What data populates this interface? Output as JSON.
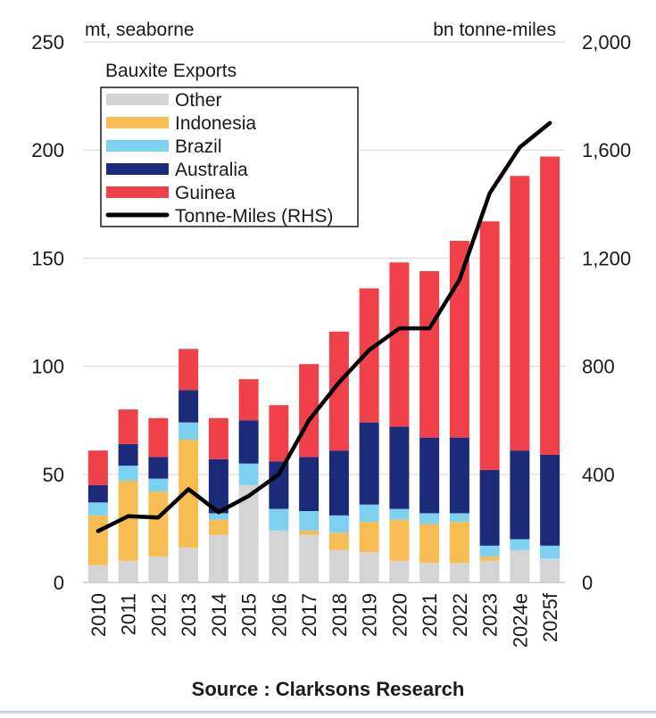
{
  "chart_data": {
    "type": "bar",
    "stacked": true,
    "left_unit_label": "mt, seaborne",
    "right_unit_label": "bn tonne-miles",
    "legend_title": "Bauxite Exports",
    "categories": [
      "2010",
      "2011",
      "2012",
      "2013",
      "2014",
      "2015",
      "2016",
      "2017",
      "2018",
      "2019",
      "2020",
      "2021",
      "2022",
      "2023",
      "2024e",
      "2025f"
    ],
    "y_left": {
      "min": 0,
      "max": 250,
      "ticks": [
        "0",
        "50",
        "100",
        "150",
        "200",
        "250"
      ]
    },
    "y_right": {
      "min": 0,
      "max": 2000,
      "ticks": [
        "0",
        "400",
        "800",
        "1,200",
        "1,600",
        "2,000"
      ]
    },
    "series": [
      {
        "name": "Other",
        "color": "#d4d4d4",
        "values": [
          8,
          10,
          12,
          16,
          22,
          45,
          24,
          22,
          15,
          14,
          10,
          9,
          9,
          10,
          15,
          11
        ]
      },
      {
        "name": "Indonesia",
        "color": "#f7bd52",
        "values": [
          23,
          37,
          30,
          50,
          7,
          0,
          0,
          2,
          8,
          14,
          19,
          18,
          19,
          2,
          0,
          0
        ]
      },
      {
        "name": "Brazil",
        "color": "#7ed0f0",
        "values": [
          6,
          7,
          6,
          8,
          3,
          10,
          10,
          9,
          8,
          8,
          5,
          5,
          4,
          5,
          5,
          6
        ]
      },
      {
        "name": "Australia",
        "color": "#1c2a7a",
        "values": [
          8,
          10,
          10,
          15,
          25,
          20,
          22,
          25,
          30,
          38,
          38,
          35,
          35,
          35,
          41,
          42
        ]
      },
      {
        "name": "Guinea",
        "color": "#f0414b",
        "values": [
          16,
          16,
          18,
          19,
          19,
          19,
          26,
          43,
          55,
          62,
          76,
          77,
          91,
          115,
          127,
          138
        ]
      }
    ],
    "line_series": {
      "name": "Tonne-Miles (RHS)",
      "color": "#000000",
      "values": [
        190,
        245,
        240,
        345,
        260,
        320,
        400,
        600,
        740,
        860,
        940,
        940,
        1120,
        1440,
        1610,
        1700
      ]
    }
  },
  "source": "Source : Clarksons Research"
}
